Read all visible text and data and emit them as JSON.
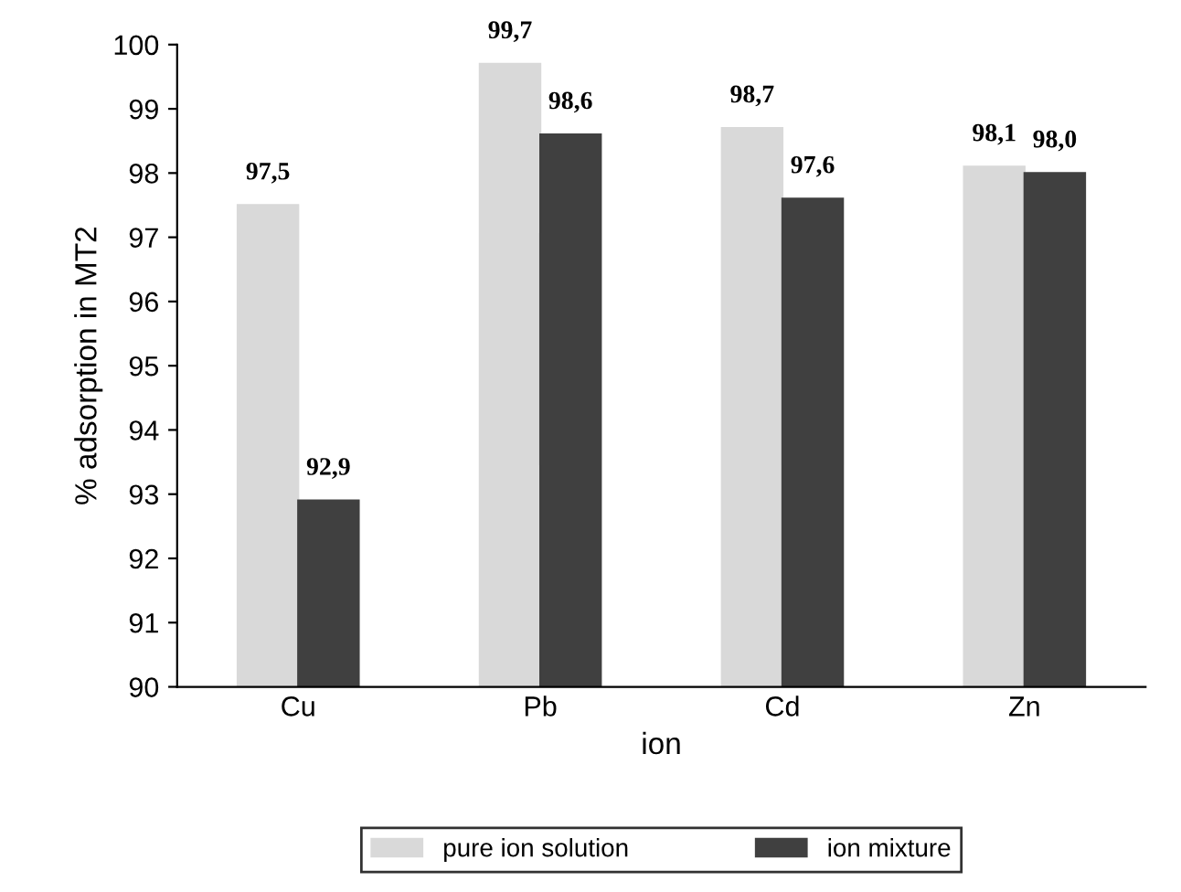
{
  "chart_data": {
    "type": "bar",
    "xlabel": "ion",
    "ylabel": "% adsorption in MT2",
    "categories": [
      "Cu",
      "Pb",
      "Cd",
      "Zn"
    ],
    "series": [
      {
        "name": "pure ion solution",
        "color": "#d9d9d9",
        "values": [
          97.5,
          99.7,
          98.7,
          98.1
        ],
        "value_labels": [
          "97,5",
          "99,7",
          "98,7",
          "98,1"
        ]
      },
      {
        "name": "ion mixture",
        "color": "#404040",
        "values": [
          92.9,
          98.6,
          97.6,
          98.0
        ],
        "value_labels": [
          "92,9",
          "98,6",
          "97,6",
          "98,0"
        ]
      }
    ],
    "ylim": [
      90,
      100
    ],
    "yticks": [
      90,
      91,
      92,
      93,
      94,
      95,
      96,
      97,
      98,
      99,
      100
    ],
    "grid": false,
    "legend": "bottom"
  }
}
